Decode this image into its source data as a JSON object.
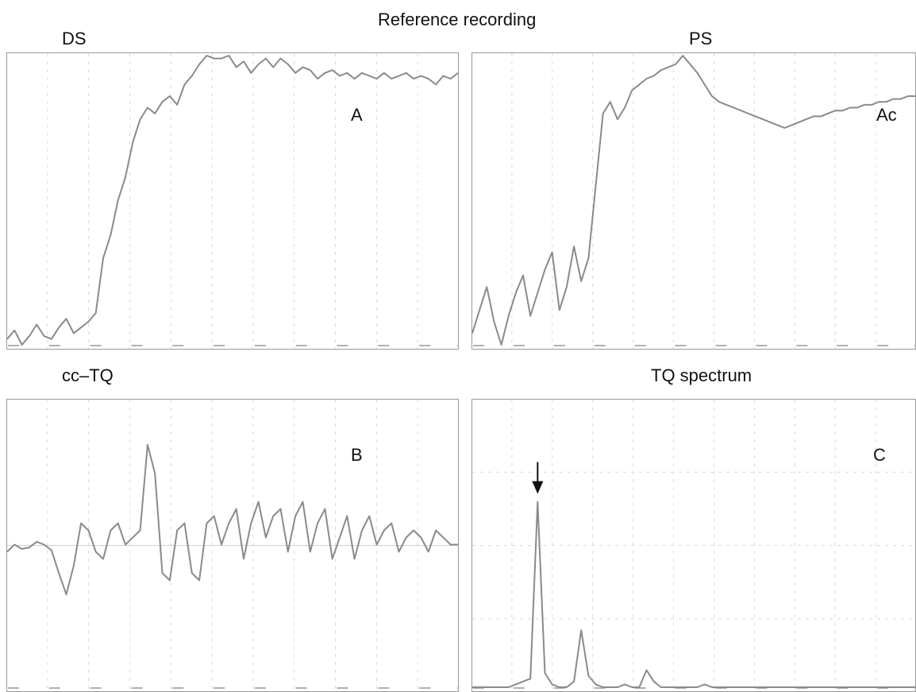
{
  "title": "Reference recording",
  "chart_data": [
    {
      "type": "line",
      "title": "DS",
      "panel_letter": "A",
      "ylim": [
        0,
        100
      ],
      "x": [
        0,
        1,
        2,
        3,
        4,
        5,
        6,
        7,
        8,
        9,
        10,
        11,
        12,
        13,
        14,
        15,
        16,
        17,
        18,
        19,
        20,
        21,
        22,
        23,
        24,
        25,
        26,
        27,
        28,
        29,
        30,
        31,
        32,
        33,
        34,
        35,
        36,
        37,
        38,
        39,
        40,
        41,
        42,
        43,
        44,
        45,
        46,
        47,
        48,
        49,
        50,
        51,
        52,
        53,
        54,
        55,
        56,
        57,
        58,
        59,
        60,
        61
      ],
      "series": [
        {
          "values": [
            2,
            5,
            0,
            3,
            7,
            3,
            2,
            6,
            9,
            4,
            6,
            8,
            11,
            30,
            38,
            50,
            58,
            70,
            78,
            82,
            80,
            84,
            86,
            83,
            90,
            93,
            97,
            100,
            99,
            99,
            100,
            96,
            98,
            94,
            97,
            99,
            96,
            99,
            97,
            94,
            96,
            95,
            92,
            94,
            95,
            93,
            94,
            92,
            94,
            93,
            92,
            94,
            92,
            93,
            94,
            92,
            93,
            92,
            90,
            93,
            92,
            94
          ]
        }
      ]
    },
    {
      "type": "line",
      "title": "PS",
      "panel_letter": "Ac",
      "ylim": [
        0,
        100
      ],
      "x": [
        0,
        1,
        2,
        3,
        4,
        5,
        6,
        7,
        8,
        9,
        10,
        11,
        12,
        13,
        14,
        15,
        16,
        17,
        18,
        19,
        20,
        21,
        22,
        23,
        24,
        25,
        26,
        27,
        28,
        29,
        30,
        31,
        32,
        33,
        34,
        35,
        36,
        37,
        38,
        39,
        40,
        41,
        42,
        43,
        44,
        45,
        46,
        47,
        48,
        49,
        50,
        51,
        52,
        53,
        54,
        55,
        56,
        57,
        58,
        59,
        60,
        61
      ],
      "series": [
        {
          "values": [
            4,
            12,
            20,
            8,
            0,
            10,
            18,
            24,
            10,
            18,
            26,
            32,
            12,
            20,
            34,
            22,
            30,
            55,
            80,
            84,
            78,
            82,
            88,
            90,
            92,
            93,
            95,
            96,
            97,
            100,
            97,
            94,
            90,
            86,
            84,
            83,
            82,
            81,
            80,
            79,
            78,
            77,
            76,
            75,
            76,
            77,
            78,
            79,
            79,
            80,
            81,
            81,
            82,
            82,
            83,
            83,
            84,
            84,
            85,
            85,
            86,
            86
          ]
        }
      ]
    },
    {
      "type": "line",
      "title": "cc–TQ",
      "panel_letter": "B",
      "ylim": [
        -100,
        100
      ],
      "x": [
        0,
        1,
        2,
        3,
        4,
        5,
        6,
        7,
        8,
        9,
        10,
        11,
        12,
        13,
        14,
        15,
        16,
        17,
        18,
        19,
        20,
        21,
        22,
        23,
        24,
        25,
        26,
        27,
        28,
        29,
        30,
        31,
        32,
        33,
        34,
        35,
        36,
        37,
        38,
        39,
        40,
        41,
        42,
        43,
        44,
        45,
        46,
        47,
        48,
        49,
        50,
        51,
        52,
        53,
        54,
        55,
        56,
        57,
        58,
        59,
        60,
        61
      ],
      "series": [
        {
          "values": [
            -5,
            0,
            -3,
            -2,
            2,
            0,
            -4,
            -20,
            -35,
            -15,
            15,
            10,
            -5,
            -10,
            10,
            15,
            0,
            5,
            10,
            70,
            50,
            -20,
            -25,
            10,
            15,
            -20,
            -25,
            15,
            20,
            0,
            15,
            25,
            -10,
            15,
            30,
            5,
            20,
            25,
            -5,
            20,
            30,
            -5,
            15,
            25,
            -10,
            5,
            20,
            -10,
            10,
            20,
            0,
            10,
            15,
            -5,
            5,
            10,
            5,
            -5,
            10,
            5,
            0,
            0
          ]
        }
      ]
    },
    {
      "type": "line",
      "title": "TQ spectrum",
      "panel_letter": "C",
      "ylim": [
        0,
        100
      ],
      "x": [
        0,
        1,
        2,
        3,
        4,
        5,
        6,
        7,
        8,
        9,
        10,
        11,
        12,
        13,
        14,
        15,
        16,
        17,
        18,
        19,
        20,
        21,
        22,
        23,
        24,
        25,
        26,
        27,
        28,
        29,
        30,
        31,
        32,
        33,
        34,
        35,
        36,
        37,
        38,
        39,
        40,
        41,
        42,
        43,
        44,
        45,
        46,
        47,
        48,
        49,
        50,
        51,
        52,
        53,
        54,
        55,
        56,
        57,
        58,
        59,
        60,
        61
      ],
      "series": [
        {
          "values": [
            0,
            0,
            0,
            0,
            0,
            0,
            1,
            2,
            3,
            65,
            5,
            1,
            0,
            0,
            2,
            20,
            4,
            1,
            0,
            0,
            0,
            1,
            0,
            0,
            6,
            2,
            0,
            0,
            0,
            0,
            0,
            0,
            1,
            0,
            0,
            0,
            0,
            0,
            0,
            0,
            0,
            0,
            0,
            0,
            0,
            0,
            0,
            0,
            0,
            0,
            0,
            0,
            0,
            0,
            0,
            0,
            0,
            0,
            0,
            0,
            0,
            0
          ]
        }
      ],
      "annotation": "arrow at main peak"
    }
  ]
}
